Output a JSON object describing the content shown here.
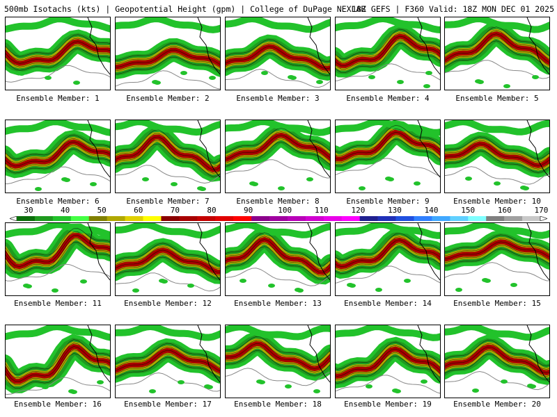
{
  "header": {
    "left": "500mb Isotachs (kts) | Geopotential Height (gpm) | College of DuPage NEXLAB",
    "right": "18Z GEFS | F360 Valid: 18Z MON DEC 01 2025"
  },
  "legend": {
    "labels": [
      "30",
      "40",
      "50",
      "60",
      "70",
      "80",
      "90",
      "100",
      "110",
      "120",
      "130",
      "140",
      "150",
      "160",
      "170"
    ],
    "colors": [
      "#0b6e0b",
      "#1f9a1f",
      "#22c22b",
      "#44ff44",
      "#808000",
      "#b0a800",
      "#e0d000",
      "#ffff00",
      "#8b0000",
      "#a80000",
      "#c40000",
      "#e00000",
      "#ff0000",
      "#8b008b",
      "#a000a0",
      "#b800b8",
      "#d000d0",
      "#e800e8",
      "#ff00ff",
      "#202090",
      "#2030b8",
      "#2050e0",
      "#3080ff",
      "#40a8ff",
      "#60d0ff",
      "#80ffff",
      "#808080",
      "#a0a0a0",
      "#c8c8c8"
    ]
  },
  "panels": [
    {
      "label": "Ensemble Member: 1"
    },
    {
      "label": "Ensemble Member: 2"
    },
    {
      "label": "Ensemble Member: 3"
    },
    {
      "label": "Ensemble Member: 4"
    },
    {
      "label": "Ensemble Member: 5"
    },
    {
      "label": "Ensemble Member: 6"
    },
    {
      "label": "Ensemble Member: 7"
    },
    {
      "label": "Ensemble Member: 8"
    },
    {
      "label": "Ensemble Member: 9"
    },
    {
      "label": "Ensemble Member: 10"
    },
    {
      "label": "Ensemble Member: 11"
    },
    {
      "label": "Ensemble Member: 12"
    },
    {
      "label": "Ensemble Member: 13"
    },
    {
      "label": "Ensemble Member: 14"
    },
    {
      "label": "Ensemble Member: 15"
    },
    {
      "label": "Ensemble Member: 16"
    },
    {
      "label": "Ensemble Member: 17"
    },
    {
      "label": "Ensemble Member: 18"
    },
    {
      "label": "Ensemble Member: 19"
    },
    {
      "label": "Ensemble Member: 20"
    }
  ]
}
